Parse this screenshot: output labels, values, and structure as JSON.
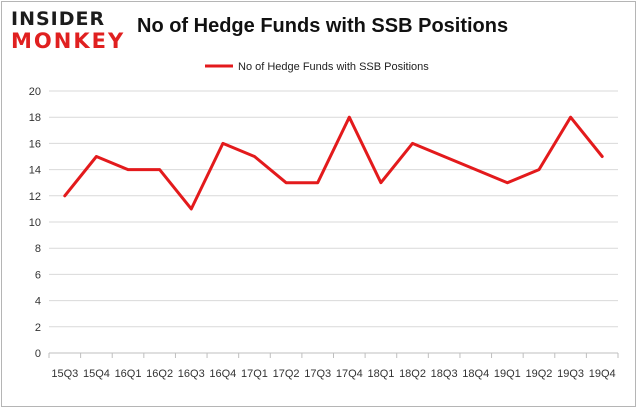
{
  "logo": {
    "top": "INSIDER",
    "bottom": "MONKEY"
  },
  "chart_data": {
    "type": "line",
    "title": "No of Hedge Funds with SSB Positions",
    "categories": [
      "15Q3",
      "15Q4",
      "16Q1",
      "16Q2",
      "16Q3",
      "16Q4",
      "17Q1",
      "17Q2",
      "17Q3",
      "17Q4",
      "18Q1",
      "18Q2",
      "18Q3",
      "18Q4",
      "19Q1",
      "19Q2",
      "19Q3",
      "19Q4"
    ],
    "series": [
      {
        "name": "No of Hedge Funds with SSB Positions",
        "values": [
          12,
          15,
          14,
          14,
          11,
          16,
          15,
          13,
          13,
          18,
          13,
          16,
          15,
          14,
          13,
          14,
          18,
          15
        ],
        "color": "#e31a1c"
      }
    ],
    "ylim": [
      0,
      20
    ],
    "yticks": [
      0,
      2,
      4,
      6,
      8,
      10,
      12,
      14,
      16,
      18,
      20
    ],
    "grid": "horizontal",
    "legend_position": "top-center",
    "xlabel": "",
    "ylabel": ""
  }
}
